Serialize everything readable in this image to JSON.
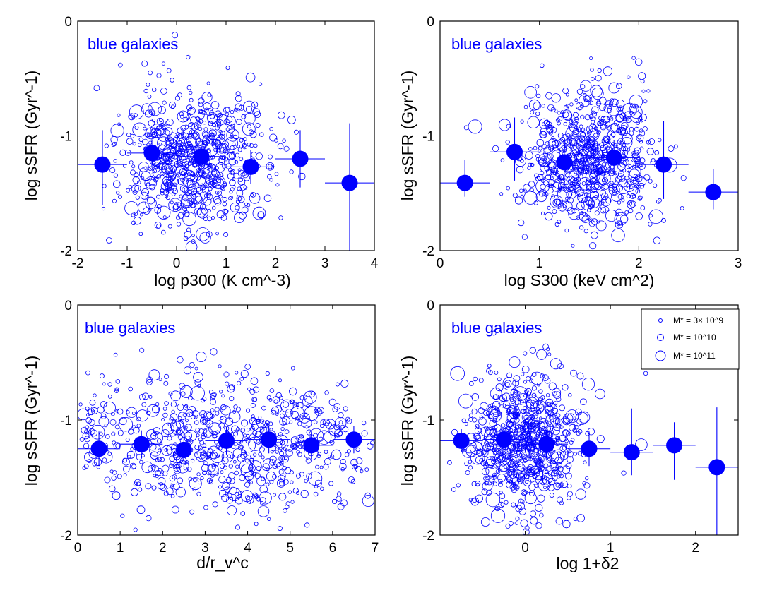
{
  "colors": {
    "marker": "#0000ff",
    "axis": "#000000",
    "background": "#ffffff"
  },
  "legend": {
    "entries": [
      {
        "label": "M* = 3× 10^9",
        "mass": "3e9"
      },
      {
        "label": "M* = 10^10",
        "mass": "1e10"
      },
      {
        "label": "M* = 10^11",
        "mass": "1e11"
      }
    ]
  },
  "chart_data": [
    {
      "type": "scatter",
      "panel_label": "blue galaxies",
      "xlabel": "log p300 (K cm^-3)",
      "ylabel": "log sSFR (Gyr^-1)",
      "xlim": [
        -2,
        4
      ],
      "ylim": [
        -2,
        0
      ],
      "xticks": [
        -2,
        -1,
        0,
        1,
        2,
        3,
        4
      ],
      "yticks": [
        -2,
        -1,
        0
      ],
      "grid": false,
      "scatter_cloud": {
        "x_center": 0.3,
        "x_spread": 0.75,
        "x_range": [
          -1.7,
          3.8
        ],
        "y_center": -1.2,
        "y_spread": 0.3,
        "n_points": 720
      },
      "binned": [
        {
          "x": -1.5,
          "y": -1.25,
          "xerr": 0.5,
          "yerr_lo": 0.35,
          "yerr_hi": 0.3
        },
        {
          "x": -0.5,
          "y": -1.15,
          "xerr": 0.5,
          "yerr_lo": 0.12,
          "yerr_hi": 0.12
        },
        {
          "x": 0.5,
          "y": -1.18,
          "xerr": 0.5,
          "yerr_lo": 0.1,
          "yerr_hi": 0.1
        },
        {
          "x": 1.5,
          "y": -1.27,
          "xerr": 0.5,
          "yerr_lo": 0.15,
          "yerr_hi": 0.15
        },
        {
          "x": 2.5,
          "y": -1.2,
          "xerr": 0.5,
          "yerr_lo": 0.25,
          "yerr_hi": 0.25
        },
        {
          "x": 3.5,
          "y": -1.41,
          "xerr": 0.5,
          "yerr_lo": 0.59,
          "yerr_hi": 0.52
        }
      ]
    },
    {
      "type": "scatter",
      "panel_label": "blue galaxies",
      "xlabel": "log S300 (keV cm^2)",
      "ylabel": "log sSFR (Gyr^-1)",
      "xlim": [
        0,
        3
      ],
      "ylim": [
        -2,
        0
      ],
      "xticks": [
        0,
        1,
        2,
        3
      ],
      "yticks": [
        -2,
        -1,
        0
      ],
      "grid": false,
      "scatter_cloud": {
        "x_center": 1.5,
        "x_spread": 0.35,
        "x_range": [
          0.2,
          2.95
        ],
        "y_center": -1.2,
        "y_spread": 0.3,
        "n_points": 720
      },
      "binned": [
        {
          "x": 0.25,
          "y": -1.41,
          "xerr": 0.25,
          "yerr_lo": 0.12,
          "yerr_hi": 0.2
        },
        {
          "x": 0.75,
          "y": -1.14,
          "xerr": 0.25,
          "yerr_lo": 0.25,
          "yerr_hi": 0.3
        },
        {
          "x": 1.25,
          "y": -1.23,
          "xerr": 0.25,
          "yerr_lo": 0.2,
          "yerr_hi": 0.2
        },
        {
          "x": 1.75,
          "y": -1.19,
          "xerr": 0.25,
          "yerr_lo": 0.15,
          "yerr_hi": 0.15
        },
        {
          "x": 2.25,
          "y": -1.25,
          "xerr": 0.25,
          "yerr_lo": 0.3,
          "yerr_hi": 0.38
        },
        {
          "x": 2.75,
          "y": -1.49,
          "xerr": 0.25,
          "yerr_lo": 0.15,
          "yerr_hi": 0.2
        }
      ]
    },
    {
      "type": "scatter",
      "panel_label": "blue galaxies",
      "xlabel": "d/r_v^c",
      "ylabel": "log sSFR (Gyr^-1)",
      "xlim": [
        0,
        7
      ],
      "ylim": [
        -2,
        0
      ],
      "xticks": [
        0,
        1,
        2,
        3,
        4,
        5,
        6,
        7
      ],
      "yticks": [
        -2,
        -1,
        0
      ],
      "grid": false,
      "scatter_cloud": {
        "x_center": 3.5,
        "x_spread": 2.0,
        "x_range": [
          0.05,
          6.95
        ],
        "y_center": -1.2,
        "y_spread": 0.3,
        "n_points": 720
      },
      "binned": [
        {
          "x": 0.5,
          "y": -1.25,
          "xerr": 0.5,
          "yerr_lo": 0.15,
          "yerr_hi": 0.15
        },
        {
          "x": 1.5,
          "y": -1.21,
          "xerr": 0.5,
          "yerr_lo": 0.12,
          "yerr_hi": 0.12
        },
        {
          "x": 2.5,
          "y": -1.26,
          "xerr": 0.5,
          "yerr_lo": 0.15,
          "yerr_hi": 0.15
        },
        {
          "x": 3.5,
          "y": -1.18,
          "xerr": 0.5,
          "yerr_lo": 0.12,
          "yerr_hi": 0.12
        },
        {
          "x": 4.5,
          "y": -1.17,
          "xerr": 0.5,
          "yerr_lo": 0.12,
          "yerr_hi": 0.12
        },
        {
          "x": 5.5,
          "y": -1.22,
          "xerr": 0.5,
          "yerr_lo": 0.12,
          "yerr_hi": 0.12
        },
        {
          "x": 6.5,
          "y": -1.17,
          "xerr": 0.5,
          "yerr_lo": 0.12,
          "yerr_hi": 0.12
        }
      ]
    },
    {
      "type": "scatter",
      "panel_label": "blue galaxies",
      "xlabel": "log 1+δ2",
      "ylabel": "log sSFR (Gyr^-1)",
      "xlim": [
        -1,
        2.5
      ],
      "ylim": [
        -2,
        0
      ],
      "xticks": [
        0,
        1,
        2
      ],
      "yticks": [
        -2,
        -1,
        0
      ],
      "grid": false,
      "legend_position": "top-right",
      "scatter_cloud": {
        "x_center": -0.05,
        "x_spread": 0.35,
        "x_range": [
          -0.95,
          1.55
        ],
        "y_center": -1.2,
        "y_spread": 0.3,
        "n_points": 720
      },
      "binned": [
        {
          "x": -0.75,
          "y": -1.18,
          "xerr": 0.25,
          "yerr_lo": 0.1,
          "yerr_hi": 0.1
        },
        {
          "x": -0.25,
          "y": -1.17,
          "xerr": 0.25,
          "yerr_lo": 0.1,
          "yerr_hi": 0.1
        },
        {
          "x": 0.25,
          "y": -1.21,
          "xerr": 0.25,
          "yerr_lo": 0.12,
          "yerr_hi": 0.12
        },
        {
          "x": 0.75,
          "y": -1.25,
          "xerr": 0.25,
          "yerr_lo": 0.15,
          "yerr_hi": 0.15
        },
        {
          "x": 1.25,
          "y": -1.28,
          "xerr": 0.25,
          "yerr_lo": 0.2,
          "yerr_hi": 0.38
        },
        {
          "x": 1.75,
          "y": -1.22,
          "xerr": 0.25,
          "yerr_lo": 0.3,
          "yerr_hi": 0.2
        },
        {
          "x": 2.25,
          "y": -1.41,
          "xerr": 0.25,
          "yerr_lo": 0.59,
          "yerr_hi": 0.52
        }
      ]
    }
  ]
}
